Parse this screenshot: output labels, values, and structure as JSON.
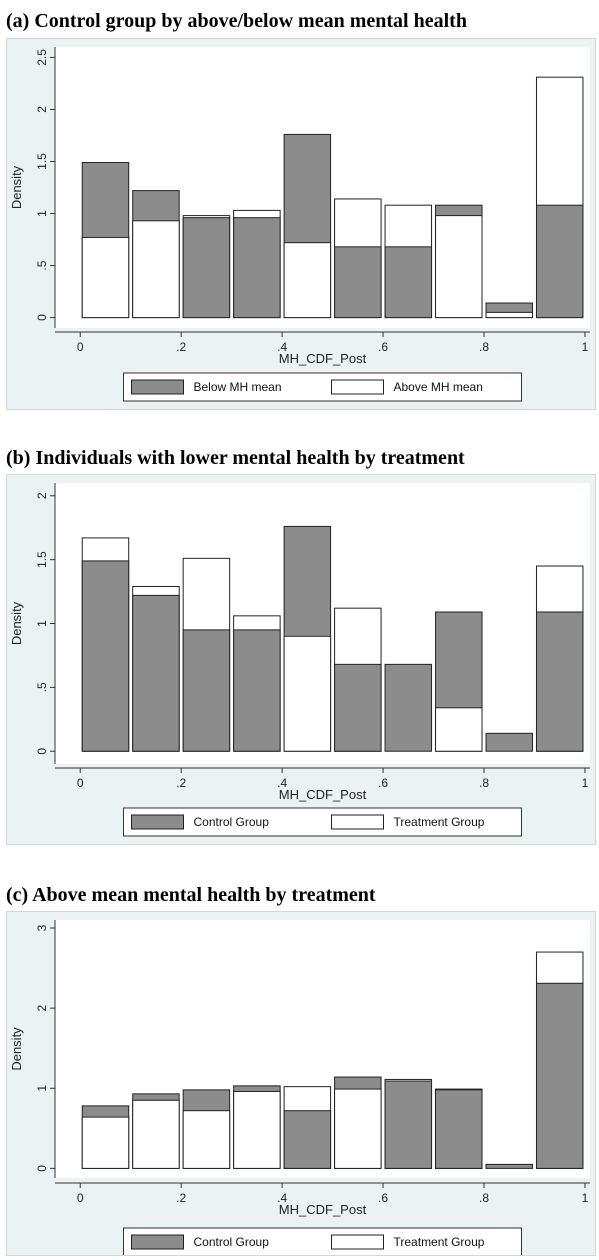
{
  "chart_data": [
    {
      "type": "bar",
      "title": "(a) Control group by above/below mean mental health",
      "xlabel": "MH_CDF_Post",
      "ylabel": "Density",
      "x_ticks": [
        "0",
        ".2",
        ".4",
        ".6",
        ".8",
        "1"
      ],
      "y_ticks": [
        "0",
        ".5",
        "1",
        "1.5",
        "2",
        "2.5"
      ],
      "xlim": [
        -0.05,
        1.01
      ],
      "ylim": [
        -0.1,
        2.6
      ],
      "bin_edges": [
        0,
        0.1,
        0.2,
        0.3,
        0.4,
        0.5,
        0.6,
        0.7,
        0.8,
        0.9,
        1.0
      ],
      "series": [
        {
          "name": "Below MH mean",
          "fill": "#8c8c8c",
          "values": [
            1.49,
            1.22,
            0.96,
            0.96,
            1.76,
            0.68,
            0.68,
            1.08,
            0.14,
            1.08
          ]
        },
        {
          "name": "Above MH mean",
          "fill": "#ffffff",
          "values": [
            0.77,
            0.93,
            0.98,
            1.03,
            0.72,
            1.14,
            1.08,
            0.98,
            0.05,
            2.31
          ]
        }
      ]
    },
    {
      "type": "bar",
      "title": "(b) Individuals with lower mental health by treatment",
      "xlabel": "MH_CDF_Post",
      "ylabel": "Density",
      "x_ticks": [
        "0",
        ".2",
        ".4",
        ".6",
        ".8",
        "1"
      ],
      "y_ticks": [
        "0",
        ".5",
        "1",
        "1.5",
        "2"
      ],
      "xlim": [
        -0.05,
        1.01
      ],
      "ylim": [
        -0.1,
        2.1
      ],
      "bin_edges": [
        0,
        0.1,
        0.2,
        0.3,
        0.4,
        0.5,
        0.6,
        0.7,
        0.8,
        0.9,
        1.0
      ],
      "series": [
        {
          "name": "Control Group",
          "fill": "#8c8c8c",
          "values": [
            1.49,
            1.22,
            0.95,
            0.95,
            1.76,
            0.68,
            0.68,
            1.09,
            0.14,
            1.09
          ]
        },
        {
          "name": "Treatment Group",
          "fill": "#ffffff",
          "values": [
            1.67,
            1.29,
            1.51,
            1.06,
            0.9,
            1.12,
            0.0,
            0.34,
            0.0,
            1.45
          ]
        }
      ]
    },
    {
      "type": "bar",
      "title": "(c) Above mean mental health by treatment",
      "xlabel": "MH_CDF_Post",
      "ylabel": "Density",
      "x_ticks": [
        "0",
        ".2",
        ".4",
        ".6",
        ".8",
        "1"
      ],
      "y_ticks": [
        "0",
        "1",
        "2",
        "3"
      ],
      "xlim": [
        -0.05,
        1.01
      ],
      "ylim": [
        -0.12,
        3.1
      ],
      "bin_edges": [
        0,
        0.1,
        0.2,
        0.3,
        0.4,
        0.5,
        0.6,
        0.7,
        0.8,
        0.9,
        1.0
      ],
      "series": [
        {
          "name": "Control Group",
          "fill": "#8c8c8c",
          "values": [
            0.78,
            0.93,
            0.98,
            1.03,
            0.72,
            1.14,
            1.09,
            0.98,
            0.05,
            2.31
          ]
        },
        {
          "name": "Treatment Group",
          "fill": "#ffffff",
          "values": [
            0.64,
            0.85,
            0.72,
            0.96,
            1.02,
            0.99,
            1.11,
            0.99,
            0.0,
            2.7
          ]
        }
      ]
    }
  ]
}
